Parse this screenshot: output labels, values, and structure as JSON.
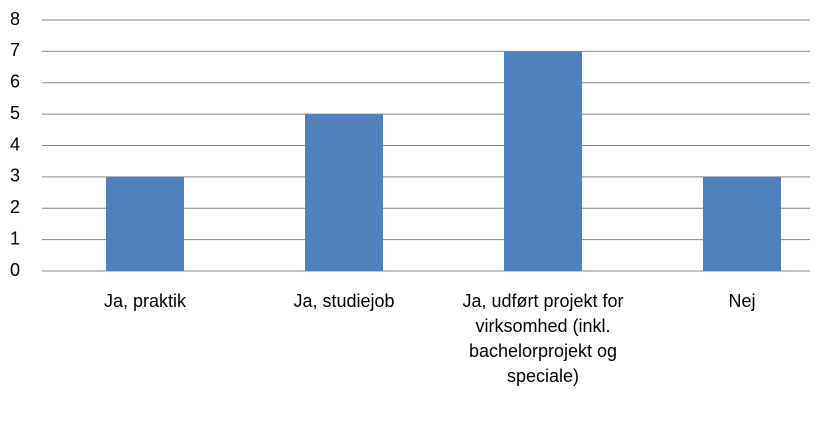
{
  "chart_data": {
    "type": "bar",
    "categories": [
      "Ja, praktik",
      "Ja, studiejob",
      "Ja, udført projekt for virksomhed (inkl. bachelorprojekt og speciale)",
      "Nej"
    ],
    "values": [
      3,
      5,
      7,
      3
    ],
    "color": "#4f81bd",
    "ylim": [
      0,
      8
    ],
    "yticks": [
      0,
      1,
      2,
      3,
      4,
      5,
      6,
      7,
      8
    ],
    "grid": true
  }
}
